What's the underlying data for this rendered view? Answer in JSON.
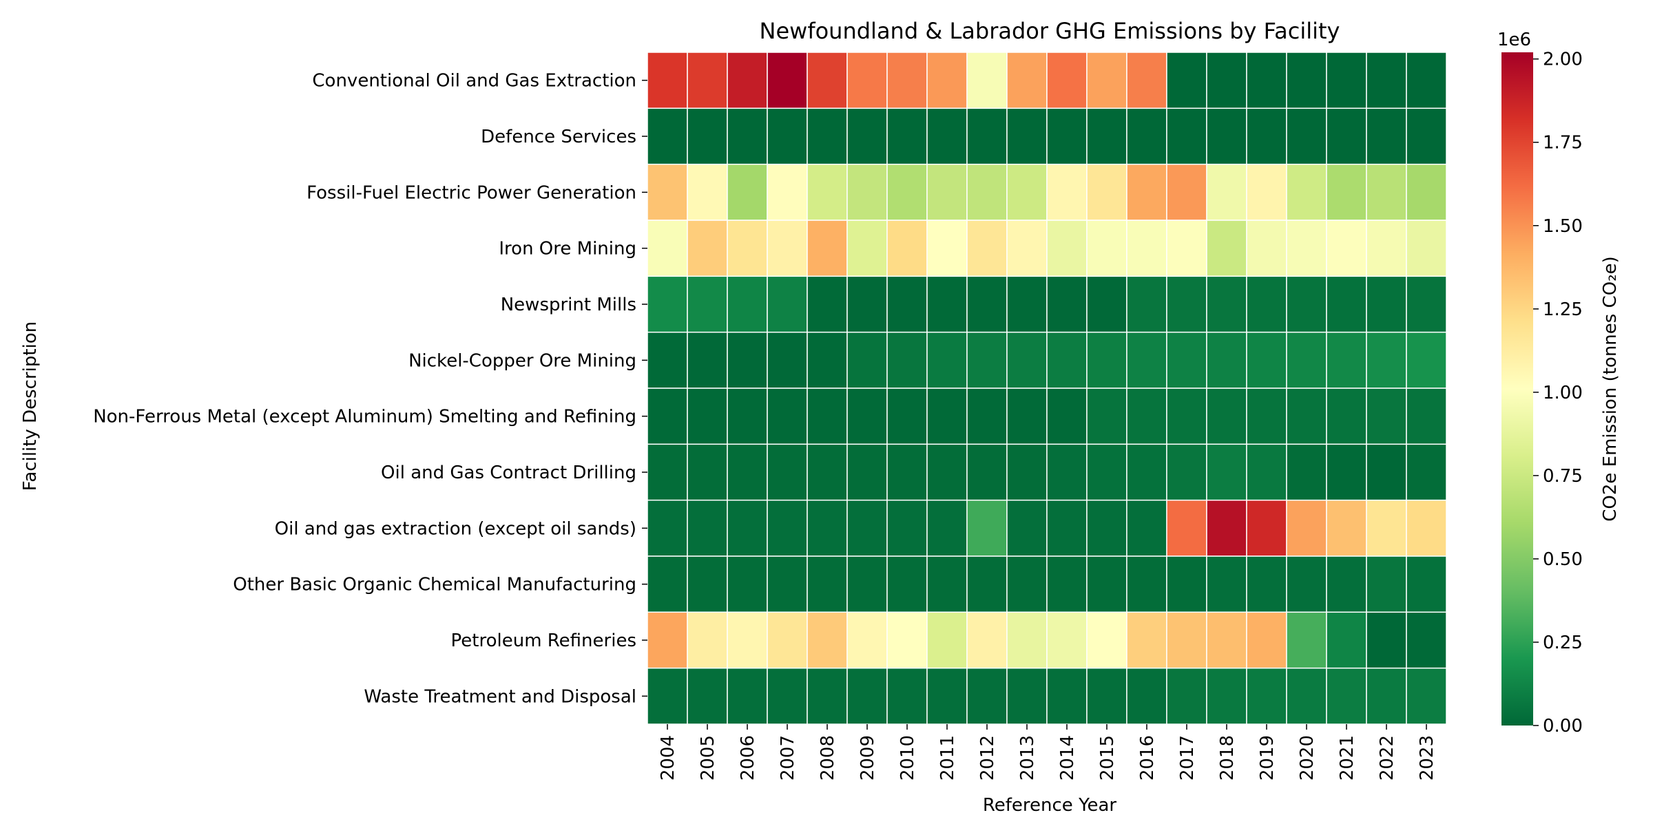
{
  "chart_data": {
    "type": "heatmap",
    "title": "Newfoundland & Labrador GHG Emissions by Facility",
    "xlabel": "Reference Year",
    "ylabel": "Facility Description",
    "x": [
      "2004",
      "2005",
      "2006",
      "2007",
      "2008",
      "2009",
      "2010",
      "2011",
      "2012",
      "2013",
      "2014",
      "2015",
      "2016",
      "2017",
      "2018",
      "2019",
      "2020",
      "2021",
      "2022",
      "2023"
    ],
    "y": [
      "Conventional Oil and Gas Extraction",
      "Defence Services",
      "Fossil-Fuel Electric Power Generation",
      "Iron Ore Mining",
      "Newsprint Mills",
      "Nickel-Copper Ore Mining",
      "Non-Ferrous Metal (except Aluminum) Smelting and Refining",
      "Oil and Gas Contract Drilling",
      "Oil and gas extraction (except oil sands)",
      "Other Basic Organic Chemical Manufacturing",
      "Petroleum Refineries",
      "Waste Treatment and Disposal"
    ],
    "values": [
      [
        1800000,
        1780000,
        1900000,
        2020000,
        1760000,
        1580000,
        1560000,
        1480000,
        970000,
        1450000,
        1600000,
        1450000,
        1560000,
        0,
        0,
        0,
        0,
        0,
        0,
        0
      ],
      [
        0,
        0,
        0,
        0,
        0,
        0,
        0,
        0,
        0,
        0,
        0,
        0,
        0,
        0,
        0,
        0,
        0,
        0,
        0,
        0
      ],
      [
        1330000,
        1050000,
        600000,
        1020000,
        790000,
        720000,
        650000,
        720000,
        710000,
        760000,
        1070000,
        1170000,
        1430000,
        1480000,
        930000,
        1080000,
        770000,
        630000,
        680000,
        610000
      ],
      [
        980000,
        1290000,
        1180000,
        1100000,
        1400000,
        840000,
        1230000,
        1010000,
        1170000,
        1070000,
        900000,
        980000,
        980000,
        1000000,
        750000,
        950000,
        970000,
        1000000,
        960000,
        900000
      ],
      [
        150000,
        140000,
        120000,
        110000,
        10000,
        5000,
        5000,
        10000,
        10000,
        10000,
        5000,
        5000,
        60000,
        60000,
        60000,
        50000,
        50000,
        40000,
        40000,
        50000
      ],
      [
        10000,
        5000,
        5000,
        5000,
        10000,
        50000,
        60000,
        80000,
        90000,
        90000,
        90000,
        100000,
        110000,
        110000,
        110000,
        120000,
        130000,
        140000,
        160000,
        180000
      ],
      [
        10000,
        10000,
        10000,
        10000,
        10000,
        10000,
        10000,
        10000,
        10000,
        10000,
        10000,
        50000,
        50000,
        50000,
        50000,
        50000,
        50000,
        50000,
        60000,
        50000
      ],
      [
        20000,
        20000,
        20000,
        20000,
        20000,
        20000,
        20000,
        20000,
        20000,
        20000,
        30000,
        40000,
        40000,
        60000,
        90000,
        70000,
        20000,
        10000,
        0,
        20000
      ],
      [
        30000,
        30000,
        30000,
        30000,
        30000,
        30000,
        30000,
        30000,
        300000,
        30000,
        30000,
        30000,
        30000,
        1620000,
        1950000,
        1850000,
        1450000,
        1340000,
        1180000,
        1230000
      ],
      [
        20000,
        20000,
        20000,
        20000,
        20000,
        20000,
        20000,
        20000,
        20000,
        20000,
        20000,
        20000,
        20000,
        20000,
        30000,
        30000,
        30000,
        30000,
        60000,
        40000
      ],
      [
        1440000,
        1120000,
        1070000,
        1170000,
        1300000,
        1060000,
        1010000,
        820000,
        1100000,
        890000,
        920000,
        1010000,
        1280000,
        1330000,
        1350000,
        1400000,
        320000,
        120000,
        0,
        10000
      ],
      [
        30000,
        30000,
        30000,
        30000,
        30000,
        30000,
        30000,
        30000,
        30000,
        30000,
        30000,
        30000,
        30000,
        60000,
        70000,
        80000,
        80000,
        90000,
        80000,
        90000
      ]
    ],
    "colorbar": {
      "label": "CO2e Emission (tonnes CO₂e)",
      "multiplier": "1e6",
      "range": [
        0,
        2020000
      ],
      "ticks": [
        0,
        250000,
        500000,
        750000,
        1000000,
        1250000,
        1500000,
        1750000,
        2000000
      ],
      "tick_labels": [
        "0.00",
        "0.25",
        "0.50",
        "0.75",
        "1.00",
        "1.25",
        "1.50",
        "1.75",
        "2.00"
      ],
      "colormap": "RdYlGn_r"
    }
  }
}
